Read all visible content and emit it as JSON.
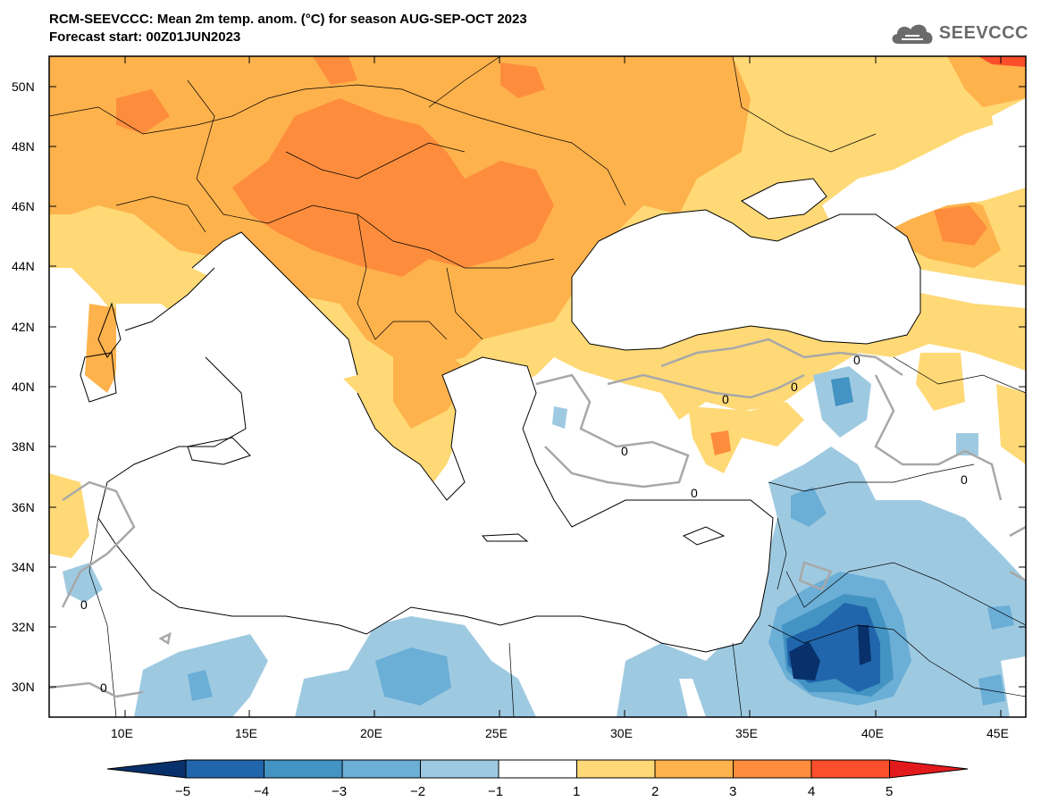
{
  "header": {
    "title_line1": "RCM-SEEVCCC: Mean 2m temp. anom. (°C) for season AUG-SEP-OCT 2023",
    "title_line2": "Forecast start: 00Z01JUN2023"
  },
  "logo": {
    "text": "SEEVCCC",
    "icon": "cloud-icon"
  },
  "map": {
    "lat_labels": [
      "50N",
      "48N",
      "46N",
      "44N",
      "42N",
      "40N",
      "38N",
      "36N",
      "34N",
      "32N",
      "30N"
    ],
    "lon_labels": [
      "10E",
      "15E",
      "20E",
      "25E",
      "30E",
      "35E",
      "40E",
      "45E"
    ],
    "contour_labels": [
      "0",
      "0",
      "0",
      "0",
      "0",
      "0",
      "0",
      "0"
    ]
  },
  "colorbar": {
    "ticks": [
      "−5",
      "−4",
      "−3",
      "−2",
      "−1",
      "1",
      "2",
      "3",
      "4",
      "5"
    ],
    "colors": {
      "lt_m5": "#08306b",
      "m5_m4": "#2166ac",
      "m4_m3": "#4393c3",
      "m3_m2": "#6baed6",
      "m2_m1": "#9ecae1",
      "m1_1": "#ffffff",
      "1_2": "#fed976",
      "2_3": "#feb24c",
      "3_4": "#fd8d3c",
      "4_5": "#fc4e2a",
      "gt_5": "#e31a1c"
    }
  }
}
